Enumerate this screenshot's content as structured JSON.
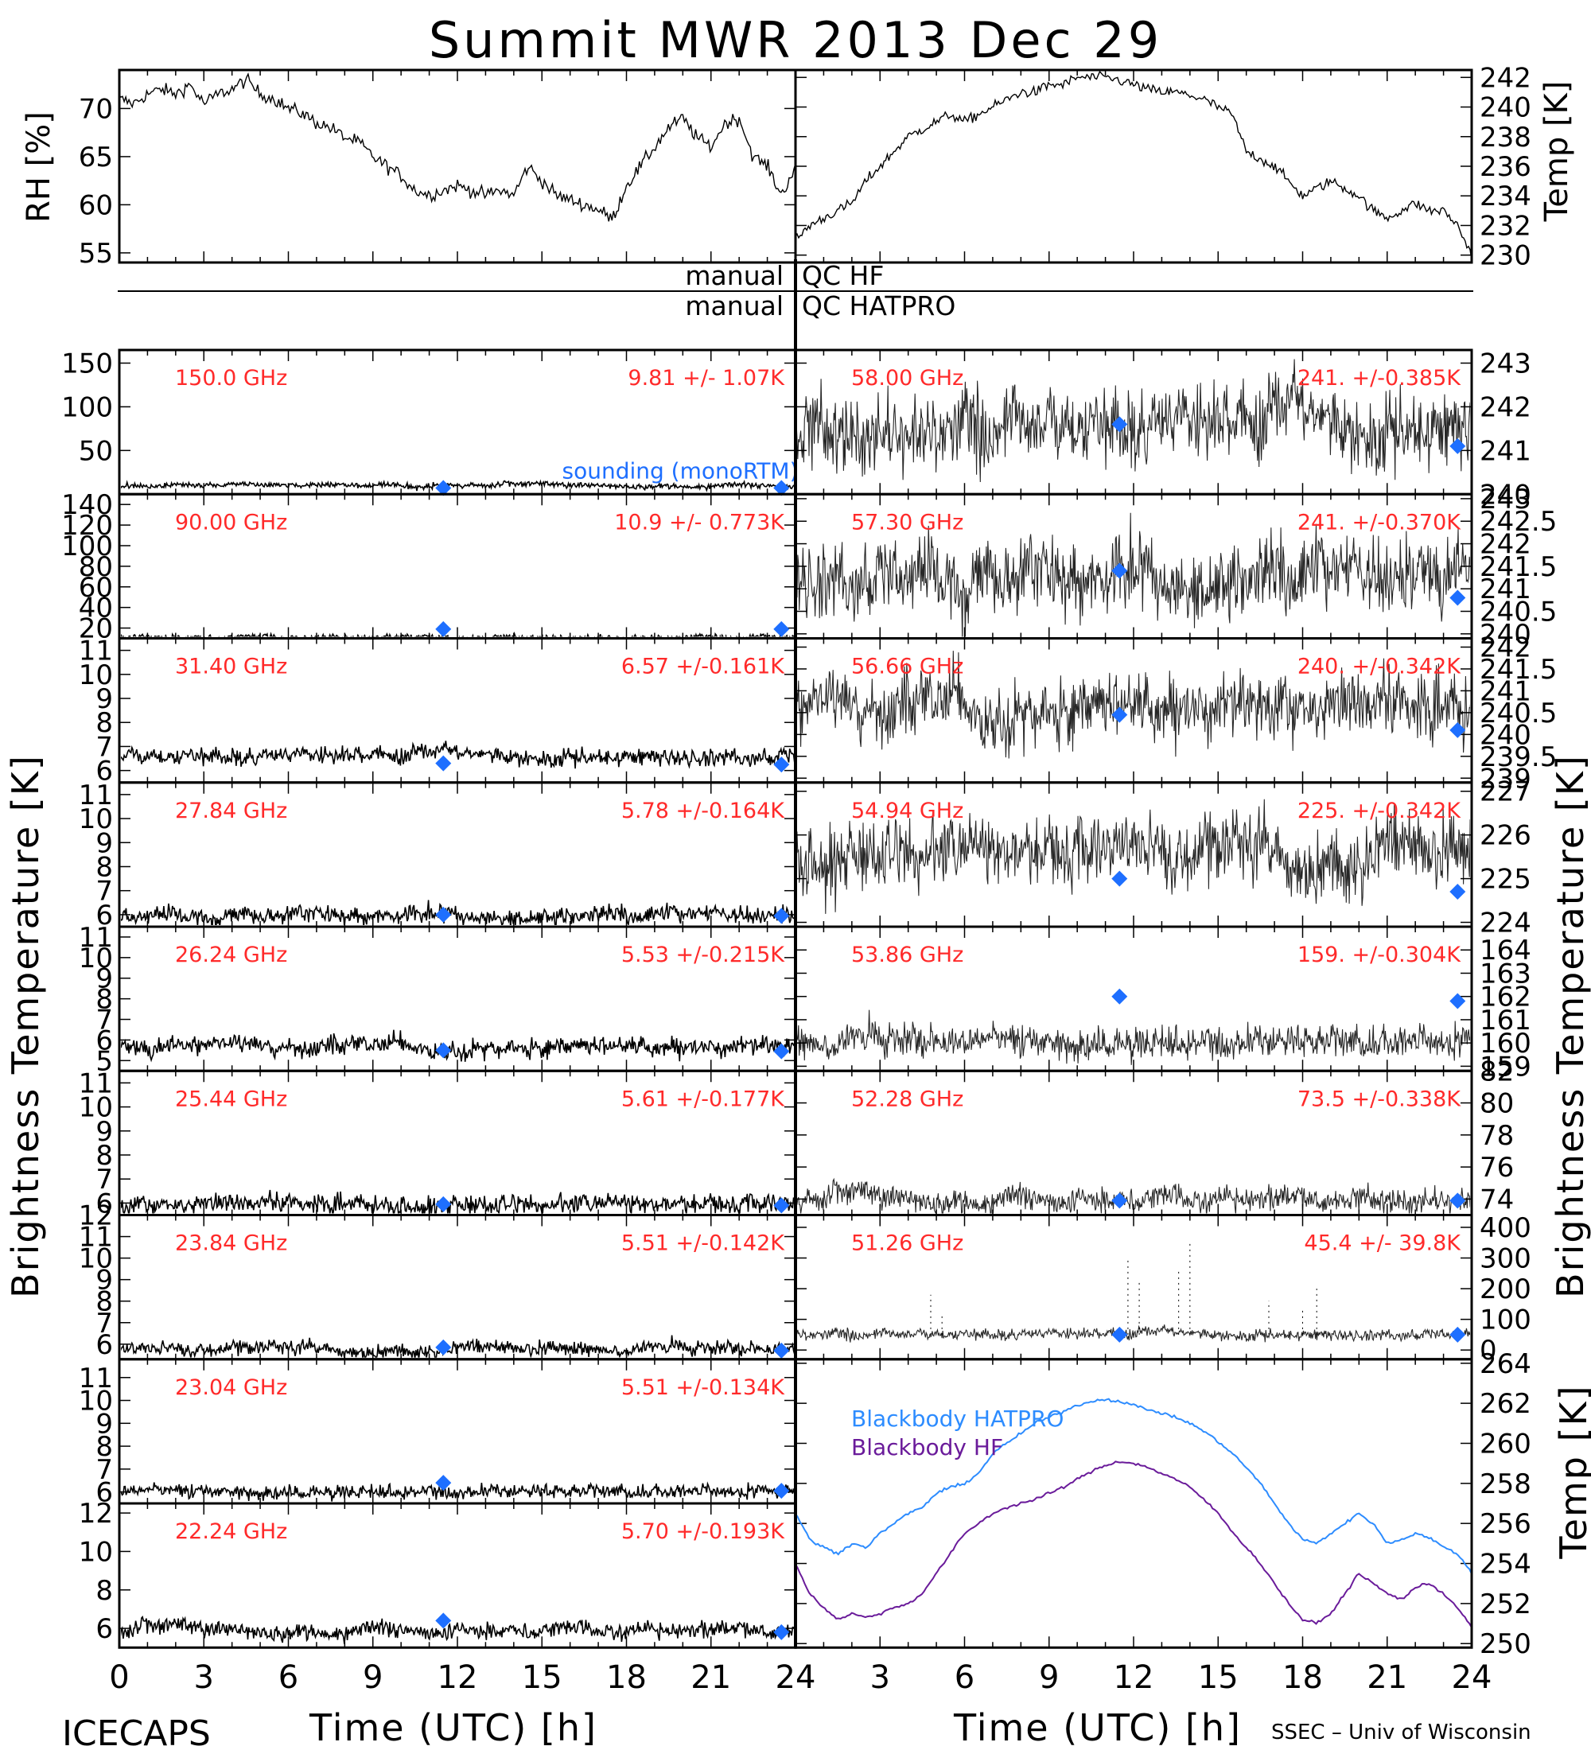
{
  "title": "Summit MWR 2013 Dec 29",
  "footer": {
    "left": "ICECAPS",
    "right": "SSEC – Univ of Wisconsin"
  },
  "qc_notes": [
    {
      "left": "manual",
      "right": "QC HF"
    },
    {
      "left": "manual",
      "right": "QC HATPRO"
    }
  ],
  "axis_titles": {
    "x": "Time (UTC) [h]",
    "left_main": "Brightness Temperature [K]",
    "right_main": "Brightness Temperature [K]",
    "rh": "RH [%]",
    "temp_top": "Temp [K]",
    "temp_bottom": "Temp [K]"
  },
  "x_ticks": [
    "0",
    "3",
    "6",
    "9",
    "12",
    "15",
    "18",
    "21",
    "24"
  ],
  "colors": {
    "trace": "#000000",
    "label": "#ff2a2a",
    "sounding": "#1e6fff",
    "hatpro": "#2d8cff",
    "hf": "#6a1b9a"
  },
  "chart_data": [
    {
      "id": "rh",
      "type": "line",
      "ylabel": "RH [%]",
      "ylim": [
        54,
        74
      ],
      "yticks": [
        55,
        60,
        65,
        70
      ],
      "x": [
        0,
        0.5,
        1,
        1.5,
        2,
        2.5,
        3,
        3.5,
        4,
        4.5,
        5,
        5.5,
        6,
        6.5,
        7,
        7.5,
        8,
        8.5,
        9,
        9.5,
        10,
        10.5,
        11,
        11.5,
        12,
        12.5,
        13,
        13.5,
        14,
        14.5,
        15,
        15.5,
        16,
        16.5,
        17,
        17.5,
        18,
        18.5,
        19,
        19.5,
        20,
        20.5,
        21,
        21.5,
        22,
        22.5,
        23,
        23.5,
        24
      ],
      "values": [
        71,
        70.5,
        71.5,
        72,
        71.5,
        72.5,
        70.5,
        71.5,
        72,
        73,
        71.5,
        71,
        70,
        69.5,
        68.5,
        68,
        67,
        66.5,
        65,
        64,
        63,
        61.5,
        61,
        61.5,
        62,
        61.5,
        61,
        61.5,
        61,
        64,
        62.5,
        61,
        60.5,
        60,
        59.5,
        58.5,
        62,
        64,
        66,
        68,
        69,
        67,
        66,
        68.5,
        69,
        65,
        64,
        61,
        64
      ]
    },
    {
      "id": "temp",
      "type": "line",
      "ylabel": "Temp [K]",
      "ylim": [
        229.5,
        242.5
      ],
      "yticks": [
        230,
        232,
        234,
        236,
        238,
        240,
        242
      ],
      "x": [
        0,
        0.5,
        1,
        1.5,
        2,
        2.5,
        3,
        3.5,
        4,
        4.5,
        5,
        5.5,
        6,
        6.5,
        7,
        7.5,
        8,
        8.5,
        9,
        9.5,
        10,
        10.5,
        11,
        11.5,
        12,
        12.5,
        13,
        13.5,
        14,
        14.5,
        15,
        15.5,
        16,
        16.5,
        17,
        17.5,
        18,
        18.5,
        19,
        19.5,
        20,
        20.5,
        21,
        21.5,
        22,
        22.5,
        23,
        23.5,
        24
      ],
      "values": [
        231,
        232,
        232.5,
        233,
        233.5,
        235,
        236,
        237,
        238,
        238.5,
        239,
        239.5,
        239,
        239.5,
        240,
        240.5,
        241,
        241,
        241.5,
        241.5,
        242,
        242,
        242,
        241.8,
        241.5,
        241.2,
        241,
        241,
        240.8,
        240.5,
        240,
        239.5,
        237,
        236.5,
        236,
        235,
        234,
        234.5,
        235,
        234.5,
        234,
        233,
        232.5,
        233,
        233.5,
        233,
        233,
        232,
        230
      ]
    },
    {
      "id": "hf-150.0",
      "type": "scatter",
      "freq": "150.0 GHz",
      "stat": "9.81 +/- 1.07K",
      "ylim": [
        0,
        165
      ],
      "yticks": [
        50,
        100,
        150
      ],
      "baseline": 9.81,
      "noise": 1.07,
      "sounding": [
        {
          "x": 11.5,
          "y": 7
        },
        {
          "x": 23.5,
          "y": 7
        }
      ],
      "annotation": "sounding (monoRTM)"
    },
    {
      "id": "hf-90.00",
      "type": "scatter",
      "freq": "90.00 GHz",
      "stat": "10.9 +/- 0.773K",
      "ylim": [
        10,
        150
      ],
      "yticks": [
        20,
        40,
        60,
        80,
        100,
        120,
        140
      ],
      "baseline": 10.9,
      "noise": 0.773,
      "sounding": [
        {
          "x": 11.5,
          "y": 19
        },
        {
          "x": 23.5,
          "y": 19
        }
      ]
    },
    {
      "id": "hf-31.40",
      "type": "scatter",
      "freq": "31.40 GHz",
      "stat": "6.57 +/-0.161K",
      "ylim": [
        5.5,
        11.5
      ],
      "yticks": [
        6,
        7,
        8,
        9,
        10,
        11
      ],
      "baseline": 6.57,
      "noise": 0.161,
      "sounding": [
        {
          "x": 11.5,
          "y": 6.3
        },
        {
          "x": 23.5,
          "y": 6.25
        }
      ]
    },
    {
      "id": "hf-27.84",
      "type": "scatter",
      "freq": "27.84 GHz",
      "stat": "5.78 +/-0.164K",
      "ylim": [
        5.5,
        11.5
      ],
      "yticks": [
        6,
        7,
        8,
        9,
        10,
        11
      ],
      "baseline": 5.95,
      "noise": 0.164,
      "sounding": [
        {
          "x": 11.5,
          "y": 6
        },
        {
          "x": 23.5,
          "y": 5.95
        }
      ]
    },
    {
      "id": "hf-26.24",
      "type": "scatter",
      "freq": "26.24 GHz",
      "stat": "5.53 +/-0.215K",
      "ylim": [
        4.5,
        11.5
      ],
      "yticks": [
        5,
        6,
        7,
        8,
        9,
        10,
        11
      ],
      "baseline": 5.6,
      "noise": 0.215,
      "sounding": [
        {
          "x": 11.5,
          "y": 5.5
        },
        {
          "x": 23.5,
          "y": 5.45
        }
      ]
    },
    {
      "id": "hf-25.44",
      "type": "scatter",
      "freq": "25.44 GHz",
      "stat": "5.61 +/-0.177K",
      "ylim": [
        5.5,
        11.5
      ],
      "yticks": [
        6,
        7,
        8,
        9,
        10,
        11
      ],
      "baseline": 5.9,
      "noise": 0.177,
      "sounding": [
        {
          "x": 11.5,
          "y": 5.95
        },
        {
          "x": 23.5,
          "y": 5.9
        }
      ]
    },
    {
      "id": "hf-23.84",
      "type": "scatter",
      "freq": "23.84 GHz",
      "stat": "5.51 +/-0.142K",
      "ylim": [
        5.3,
        12
      ],
      "yticks": [
        6,
        7,
        8,
        9,
        10,
        11,
        12
      ],
      "baseline": 5.75,
      "noise": 0.142,
      "sounding": [
        {
          "x": 11.5,
          "y": 5.85
        },
        {
          "x": 23.5,
          "y": 5.7
        }
      ]
    },
    {
      "id": "hf-23.04",
      "type": "scatter",
      "freq": "23.04 GHz",
      "stat": "5.51 +/-0.134K",
      "ylim": [
        5.5,
        11.8
      ],
      "yticks": [
        6,
        7,
        8,
        9,
        10,
        11
      ],
      "baseline": 6.0,
      "noise": 0.134,
      "sounding": [
        {
          "x": 11.5,
          "y": 6.4
        },
        {
          "x": 23.5,
          "y": 6.05
        }
      ]
    },
    {
      "id": "hf-22.24",
      "type": "scatter",
      "freq": "22.24 GHz",
      "stat": "5.70 +/-0.193K",
      "ylim": [
        5,
        12.5
      ],
      "yticks": [
        6,
        8,
        10,
        12
      ],
      "baseline": 5.9,
      "noise": 0.193,
      "sounding": [
        {
          "x": 11.5,
          "y": 6.4
        },
        {
          "x": 23.5,
          "y": 5.8
        }
      ]
    },
    {
      "id": "hatpro-58.00",
      "type": "scatter",
      "freq": "58.00 GHz",
      "stat": "241. +/-0.385K",
      "ylim": [
        240,
        243.3
      ],
      "yticks": [
        240,
        241,
        242,
        243
      ],
      "baseline": 241.5,
      "noise": 0.385,
      "sounding": [
        {
          "x": 11.5,
          "y": 241.6
        },
        {
          "x": 23.5,
          "y": 241.1
        }
      ]
    },
    {
      "id": "hatpro-57.30",
      "type": "scatter",
      "freq": "57.30 GHz",
      "stat": "241. +/-0.370K",
      "ylim": [
        239.9,
        243.1
      ],
      "yticks": [
        240,
        240.5,
        241,
        241.5,
        242,
        242.5,
        243
      ],
      "baseline": 241.2,
      "noise": 0.37,
      "sounding": [
        {
          "x": 11.5,
          "y": 241.4
        },
        {
          "x": 23.5,
          "y": 240.8
        }
      ]
    },
    {
      "id": "hatpro-56.66",
      "type": "scatter",
      "freq": "56.66 GHz",
      "stat": "240. +/-0.342K",
      "ylim": [
        238.9,
        242.2
      ],
      "yticks": [
        239,
        239.5,
        240,
        240.5,
        241,
        241.5,
        242
      ],
      "baseline": 240.5,
      "noise": 0.342,
      "sounding": [
        {
          "x": 11.5,
          "y": 240.45
        },
        {
          "x": 23.5,
          "y": 240.1
        }
      ]
    },
    {
      "id": "hatpro-54.94",
      "type": "scatter",
      "freq": "54.94 GHz",
      "stat": "225. +/-0.342K",
      "ylim": [
        223.9,
        227.2
      ],
      "yticks": [
        224,
        225,
        226,
        227
      ],
      "baseline": 225.5,
      "noise": 0.342,
      "sounding": [
        {
          "x": 11.5,
          "y": 225.0
        },
        {
          "x": 23.5,
          "y": 224.7
        }
      ]
    },
    {
      "id": "hatpro-53.86",
      "type": "scatter",
      "freq": "53.86 GHz",
      "stat": "159. +/-0.304K",
      "ylim": [
        158.8,
        165
      ],
      "yticks": [
        159,
        160,
        161,
        162,
        163,
        164
      ],
      "baseline": 160,
      "noise": 0.304,
      "sounding": [
        {
          "x": 11.5,
          "y": 162
        },
        {
          "x": 23.5,
          "y": 161.8
        }
      ]
    },
    {
      "id": "hatpro-52.28",
      "type": "scatter",
      "freq": "52.28 GHz",
      "stat": "73.5 +/-0.338K",
      "ylim": [
        73,
        82
      ],
      "yticks": [
        74,
        76,
        78,
        80,
        82
      ],
      "baseline": 74,
      "noise": 0.338,
      "sounding": [
        {
          "x": 11.5,
          "y": 73.9
        },
        {
          "x": 23.5,
          "y": 73.9
        }
      ]
    },
    {
      "id": "hatpro-51.26",
      "type": "scatter",
      "freq": "51.26 GHz",
      "stat": "45.4 +/- 39.8K",
      "ylim": [
        -30,
        440
      ],
      "yticks": [
        0,
        100,
        200,
        300,
        400
      ],
      "baseline": 50,
      "noise": 8,
      "sounding": [
        {
          "x": 11.5,
          "y": 50
        },
        {
          "x": 23.5,
          "y": 50
        }
      ]
    },
    {
      "id": "blackbody",
      "type": "line",
      "ylabel": "Temp [K]",
      "ylim": [
        249.8,
        264.2
      ],
      "yticks": [
        250,
        252,
        254,
        256,
        258,
        260,
        262,
        264
      ],
      "x": [
        0,
        0.5,
        1,
        1.5,
        2,
        2.5,
        3,
        3.5,
        4,
        4.5,
        5,
        5.5,
        6,
        6.5,
        7,
        7.5,
        8,
        8.5,
        9,
        9.5,
        10,
        10.5,
        11,
        11.5,
        12,
        12.5,
        13,
        13.5,
        14,
        14.5,
        15,
        15.5,
        16,
        16.5,
        17,
        17.5,
        18,
        18.5,
        19,
        19.5,
        20,
        20.5,
        21,
        21.5,
        22,
        22.5,
        23,
        23.5,
        24
      ],
      "series": [
        {
          "name": "Blackbody HATPRO",
          "values": [
            256.5,
            255.2,
            254.8,
            254.5,
            255.0,
            254.8,
            255.5,
            256.0,
            256.5,
            256.8,
            257.5,
            257.8,
            258.0,
            258.5,
            259.5,
            260.0,
            260.5,
            261.0,
            261.3,
            261.6,
            261.9,
            262.1,
            262.2,
            262.1,
            261.9,
            261.7,
            261.5,
            261.3,
            261.0,
            260.6,
            260.1,
            259.5,
            258.8,
            258.0,
            257.0,
            256.0,
            255.2,
            255.0,
            255.5,
            256.0,
            256.5,
            256.0,
            255.0,
            255.2,
            255.5,
            255.3,
            254.8,
            254.5,
            253.5
          ]
        },
        {
          "name": "Blackbody HF",
          "values": [
            254.0,
            252.5,
            251.8,
            251.2,
            251.5,
            251.3,
            251.5,
            251.8,
            252.0,
            252.5,
            253.5,
            254.5,
            255.5,
            256.0,
            256.5,
            256.8,
            257.0,
            257.2,
            257.5,
            257.8,
            258.2,
            258.6,
            258.9,
            259.1,
            259.0,
            258.8,
            258.5,
            258.2,
            257.8,
            257.2,
            256.5,
            255.6,
            254.8,
            254.0,
            253.0,
            252.0,
            251.2,
            251.0,
            251.5,
            252.5,
            253.5,
            253.0,
            252.5,
            252.2,
            252.8,
            253.0,
            252.5,
            251.8,
            250.8
          ]
        }
      ]
    }
  ]
}
